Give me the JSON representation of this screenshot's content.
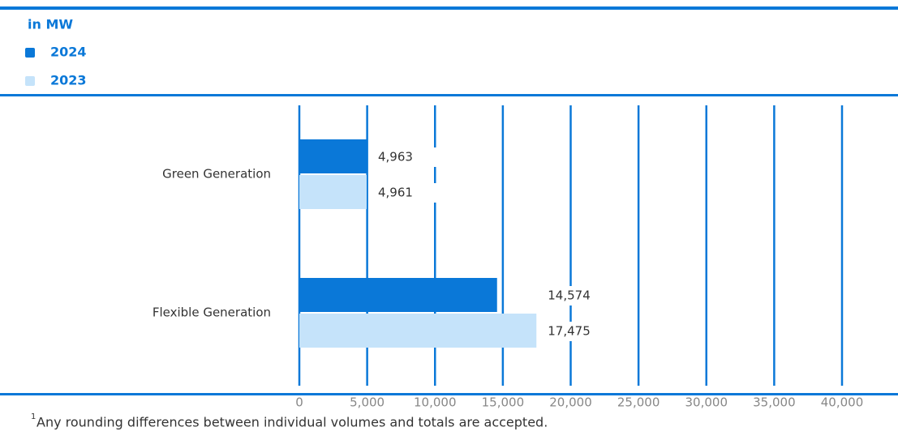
{
  "chart_data": {
    "type": "bar",
    "orientation": "horizontal",
    "unit": "in MW",
    "categories": [
      "Green Generation",
      "Flexible Generation"
    ],
    "series": [
      {
        "name": "2024",
        "color": "#0a78d8",
        "values": [
          4963,
          14574
        ],
        "value_labels": [
          "4,963",
          "14,574"
        ]
      },
      {
        "name": "2023",
        "color": "#c5e3fa",
        "values": [
          4961,
          17475
        ],
        "value_labels": [
          "4,961",
          "17,475"
        ]
      }
    ],
    "xlim": [
      0,
      40000
    ],
    "xticks": [
      0,
      {
        "value": 5000,
        "label": "5,000"
      },
      {
        "value": 10000,
        "label": "10,000"
      },
      {
        "value": 15000,
        "label": "15,000"
      },
      {
        "value": 20000,
        "label": "20,000"
      },
      {
        "value": 25000,
        "label": "25,000"
      },
      {
        "value": 30000,
        "label": "30,000"
      },
      {
        "value": 35000,
        "label": "35,000"
      },
      {
        "value": 40000,
        "label": "40,000"
      }
    ],
    "grid": true
  },
  "footnote": {
    "marker": "1",
    "text": "Any rounding differences between individual volumes and totals are accepted."
  }
}
